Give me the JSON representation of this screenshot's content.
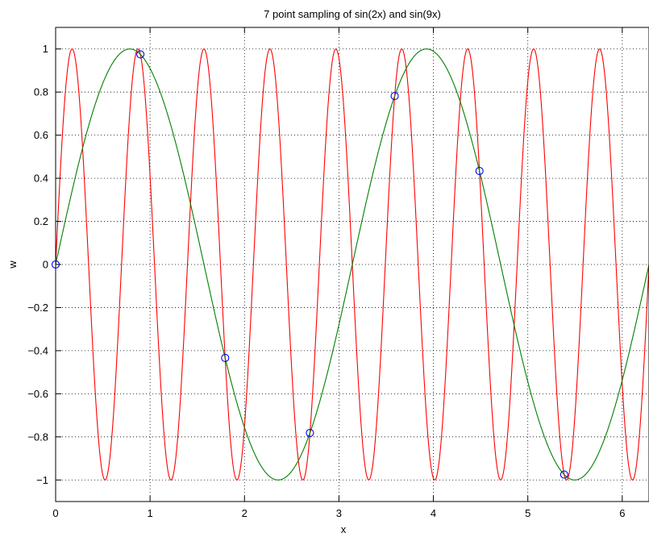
{
  "chart_data": {
    "type": "line",
    "title": "7 point sampling of sin(2x) and sin(9x)",
    "xlabel": "x",
    "ylabel": "w",
    "xlim": [
      0,
      6.2832
    ],
    "ylim": [
      -1.1,
      1.1
    ],
    "x_ticks": [
      0,
      1,
      2,
      3,
      4,
      5,
      6
    ],
    "y_ticks": [
      -1,
      -0.8,
      -0.6,
      -0.4,
      -0.2,
      0,
      0.2,
      0.4,
      0.6,
      0.8,
      1
    ],
    "x_tick_labels": [
      "0",
      "1",
      "2",
      "3",
      "4",
      "5",
      "6"
    ],
    "y_tick_labels": [
      "−1",
      "−0.8",
      "−0.6",
      "−0.4",
      "−0.2",
      "0",
      "0.2",
      "0.4",
      "0.6",
      "0.8",
      "1"
    ],
    "grid": true,
    "series": [
      {
        "function": "sin(9x)",
        "color": "#ff0000",
        "style": "line"
      },
      {
        "function": "sin(2x)",
        "color": "#008000",
        "style": "line"
      },
      {
        "style": "markers",
        "marker": "circle",
        "color": "#0000ff",
        "x": [
          0,
          0.8976,
          1.7952,
          2.6928,
          3.5904,
          4.488,
          5.3856
        ],
        "y": [
          0,
          0.9749,
          -0.4339,
          -0.7818,
          0.7818,
          0.4339,
          -0.9749
        ]
      }
    ]
  }
}
